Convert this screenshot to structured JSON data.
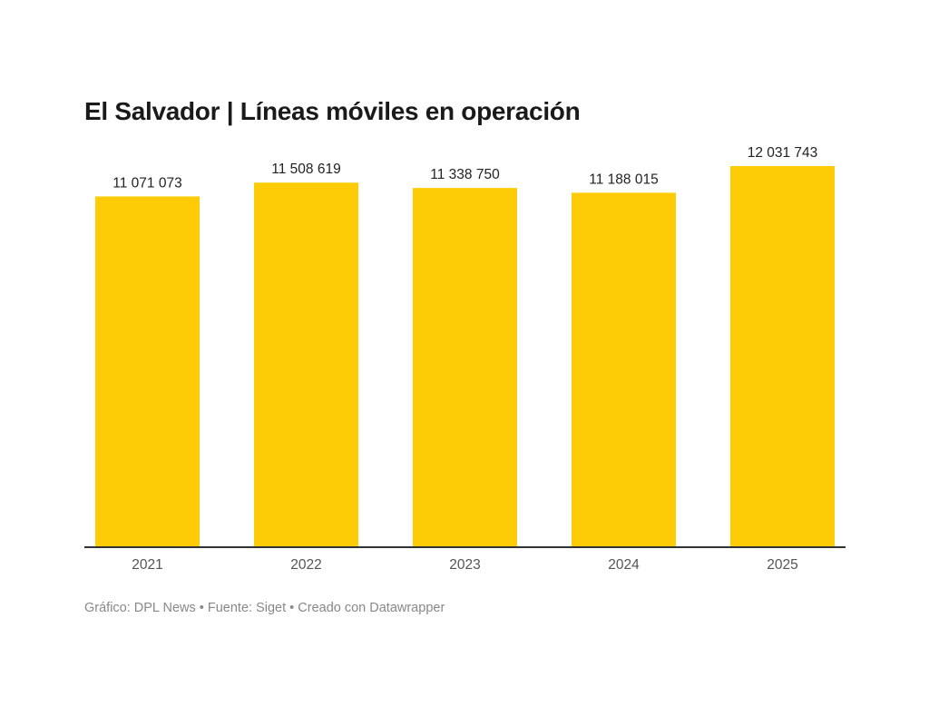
{
  "chart_data": {
    "type": "bar",
    "title": "El Salvador | Líneas móviles en operación",
    "categories": [
      "2021",
      "2022",
      "2023",
      "2024",
      "2025"
    ],
    "values": [
      11071073,
      11508619,
      11338750,
      11188015,
      12031743
    ],
    "value_labels": [
      "11 071 073",
      "11 508 619",
      "11 338 750",
      "11 188 015",
      "12 031 743"
    ],
    "xlabel": "",
    "ylabel": "",
    "ylim": [
      0,
      12031743
    ],
    "grid": false,
    "legend": "none",
    "bar_color": "#fecc06"
  },
  "footer": "Gráfico: DPL News • Fuente: Siget • Creado con Datawrapper"
}
